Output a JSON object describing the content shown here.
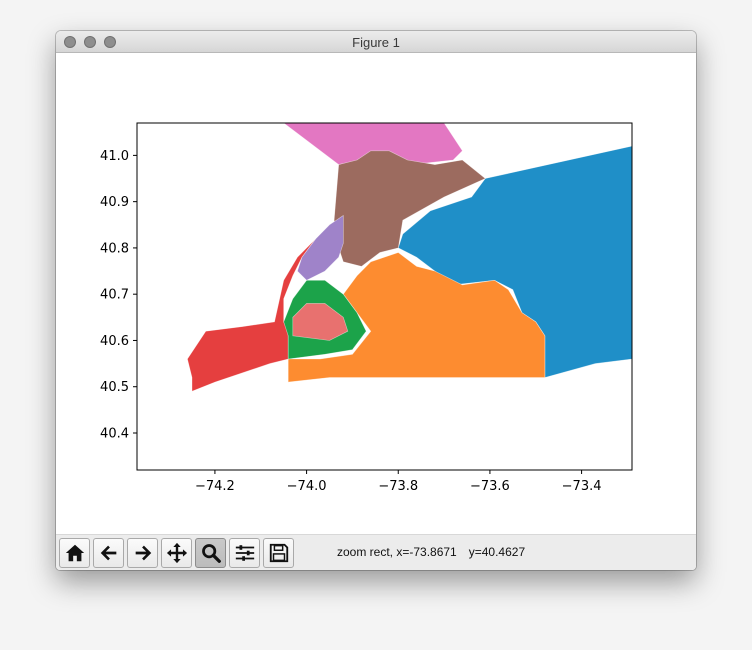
{
  "window": {
    "title": "Figure 1",
    "buttons": [
      "close",
      "minimize",
      "zoom"
    ]
  },
  "toolbar": {
    "tools": [
      {
        "name": "home-button",
        "icon": "home-icon",
        "active": false
      },
      {
        "name": "back-button",
        "icon": "arrow-left-icon",
        "active": false
      },
      {
        "name": "forward-button",
        "icon": "arrow-right-icon",
        "active": false
      },
      {
        "name": "pan-button",
        "icon": "move-icon",
        "active": false
      },
      {
        "name": "zoom-button",
        "icon": "magnifier-icon",
        "active": true
      },
      {
        "name": "subplots-button",
        "icon": "sliders-icon",
        "active": false
      },
      {
        "name": "save-button",
        "icon": "floppy-disk-icon",
        "active": false
      }
    ],
    "status": {
      "mode": "zoom rect, x=-73.8671",
      "y": "y=40.4627"
    }
  },
  "chart_data": {
    "type": "map",
    "description_visible": "choropleth of colored regions with thin white borders",
    "title": "",
    "xlabel": "",
    "ylabel": "",
    "xlim": [
      -74.37,
      -73.29
    ],
    "ylim": [
      40.32,
      41.07
    ],
    "x_ticks": [
      -74.2,
      -74.0,
      -73.8,
      -73.6,
      -73.4
    ],
    "x_tick_labels": [
      "−74.2",
      "−74.0",
      "−73.8",
      "−73.6",
      "−73.4"
    ],
    "y_ticks": [
      40.4,
      40.5,
      40.6,
      40.7,
      40.8,
      40.9,
      41.0
    ],
    "y_tick_labels": [
      "40.4",
      "40.5",
      "40.6",
      "40.7",
      "40.8",
      "40.9",
      "41.0"
    ],
    "grid": false,
    "regions": [
      {
        "color": "#e377c2",
        "points": [
          [
            -74.05,
            41.07
          ],
          [
            -73.7,
            41.07
          ],
          [
            -73.66,
            41.01
          ],
          [
            -73.68,
            40.99
          ],
          [
            -73.77,
            40.98
          ],
          [
            -73.87,
            40.99
          ],
          [
            -73.93,
            40.98
          ]
        ]
      },
      {
        "color": "#1f8fc8",
        "points": [
          [
            -73.61,
            40.95
          ],
          [
            -73.29,
            41.02
          ],
          [
            -73.29,
            40.56
          ],
          [
            -73.37,
            40.55
          ],
          [
            -73.48,
            40.52
          ],
          [
            -73.48,
            40.61
          ],
          [
            -73.5,
            40.64
          ],
          [
            -73.53,
            40.66
          ],
          [
            -73.55,
            40.71
          ],
          [
            -73.59,
            40.73
          ],
          [
            -73.68,
            40.72
          ],
          [
            -73.72,
            40.75
          ],
          [
            -73.76,
            40.78
          ],
          [
            -73.8,
            40.8
          ],
          [
            -73.79,
            40.83
          ],
          [
            -73.73,
            40.88
          ],
          [
            -73.64,
            40.91
          ]
        ]
      },
      {
        "color": "#9c6b5f",
        "points": [
          [
            -73.93,
            40.98
          ],
          [
            -73.89,
            40.99
          ],
          [
            -73.86,
            41.01
          ],
          [
            -73.82,
            41.01
          ],
          [
            -73.78,
            40.99
          ],
          [
            -73.72,
            40.98
          ],
          [
            -73.66,
            40.99
          ],
          [
            -73.61,
            40.95
          ],
          [
            -73.7,
            40.91
          ],
          [
            -73.79,
            40.86
          ],
          [
            -73.8,
            40.8
          ],
          [
            -73.84,
            40.79
          ],
          [
            -73.88,
            40.76
          ],
          [
            -73.92,
            40.77
          ],
          [
            -73.93,
            40.8
          ],
          [
            -73.94,
            40.86
          ]
        ]
      },
      {
        "color": "#fd8c30",
        "points": [
          [
            -74.04,
            40.51
          ],
          [
            -73.95,
            40.52
          ],
          [
            -73.87,
            40.52
          ],
          [
            -73.72,
            40.52
          ],
          [
            -73.6,
            40.52
          ],
          [
            -73.48,
            40.52
          ],
          [
            -73.48,
            40.61
          ],
          [
            -73.5,
            40.64
          ],
          [
            -73.53,
            40.66
          ],
          [
            -73.56,
            40.71
          ],
          [
            -73.59,
            40.73
          ],
          [
            -73.66,
            40.72
          ],
          [
            -73.72,
            40.75
          ],
          [
            -73.76,
            40.76
          ],
          [
            -73.8,
            40.79
          ],
          [
            -73.86,
            40.77
          ],
          [
            -73.89,
            40.74
          ],
          [
            -73.92,
            40.7
          ],
          [
            -73.86,
            40.62
          ],
          [
            -73.9,
            40.57
          ],
          [
            -73.97,
            40.56
          ],
          [
            -74.04,
            40.56
          ]
        ]
      },
      {
        "color": "#e53f3f",
        "points": [
          [
            -74.25,
            40.49
          ],
          [
            -74.2,
            40.51
          ],
          [
            -74.08,
            40.55
          ],
          [
            -74.04,
            40.56
          ],
          [
            -74.04,
            40.62
          ],
          [
            -74.05,
            40.64
          ],
          [
            -74.05,
            40.69
          ],
          [
            -74.03,
            40.74
          ],
          [
            -74.01,
            40.78
          ],
          [
            -73.98,
            40.82
          ],
          [
            -74.02,
            40.78
          ],
          [
            -74.05,
            40.73
          ],
          [
            -74.07,
            40.64
          ],
          [
            -74.14,
            40.63
          ],
          [
            -74.22,
            40.62
          ],
          [
            -74.26,
            40.56
          ],
          [
            -74.25,
            40.52
          ]
        ]
      },
      {
        "color": "#1ca34a",
        "points": [
          [
            -74.04,
            40.56
          ],
          [
            -73.96,
            40.57
          ],
          [
            -73.9,
            40.58
          ],
          [
            -73.87,
            40.62
          ],
          [
            -73.89,
            40.66
          ],
          [
            -73.92,
            40.7
          ],
          [
            -73.96,
            40.73
          ],
          [
            -74.0,
            40.73
          ],
          [
            -74.03,
            40.69
          ],
          [
            -74.05,
            40.64
          ],
          [
            -74.04,
            40.61
          ]
        ]
      },
      {
        "color": "#e8716f",
        "points": [
          [
            -74.03,
            40.61
          ],
          [
            -73.95,
            40.6
          ],
          [
            -73.91,
            40.62
          ],
          [
            -73.92,
            40.65
          ],
          [
            -73.96,
            40.68
          ],
          [
            -74.0,
            40.68
          ],
          [
            -74.03,
            40.65
          ]
        ]
      },
      {
        "color": "#9f83c9",
        "points": [
          [
            -74.01,
            40.78
          ],
          [
            -73.98,
            40.82
          ],
          [
            -73.95,
            40.85
          ],
          [
            -73.92,
            40.87
          ],
          [
            -73.92,
            40.81
          ],
          [
            -73.93,
            40.78
          ],
          [
            -73.96,
            40.75
          ],
          [
            -74.0,
            40.73
          ],
          [
            -74.02,
            40.75
          ]
        ]
      }
    ]
  },
  "style": {
    "window_bg": "#ffffff",
    "toolbar_bg": "#ececec",
    "axes_edge": "#000000",
    "region_border": "#ffffff"
  }
}
